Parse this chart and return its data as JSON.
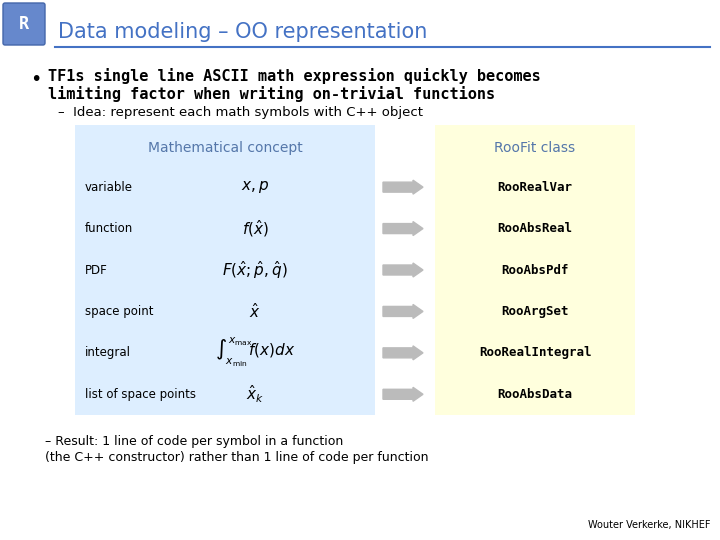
{
  "title": "Data modeling – OO representation",
  "title_color": "#4472C4",
  "bg_color": "#FFFFFF",
  "bullet1": "TF1s single line ASCII math expression quickly becomes\nlimiting factor when writing on-trivial functions",
  "sub_bullet1": "Idea: represent each math symbols with C++ object",
  "left_header": "Mathematical concept",
  "right_header": "RooFit class",
  "left_bg": "#DDEEFF",
  "right_bg": "#FFFFDD",
  "rows": [
    {
      "label": "variable",
      "math": "$x, p$",
      "roofit": "RooRealVar"
    },
    {
      "label": "function",
      "math": "$f(\\hat{x})$",
      "roofit": "RooAbsReal"
    },
    {
      "label": "PDF",
      "math": "$F(\\hat{x};\\hat{p},\\hat{q})$",
      "roofit": "RooAbsPdf"
    },
    {
      "label": "space point",
      "math": "$\\hat{x}$",
      "roofit": "RooArgSet"
    },
    {
      "label": "integral",
      "math": "$\\int_{x_{\\min}}^{x_{\\max}}\\!f(x)dx$",
      "roofit": "RooRealIntegral"
    },
    {
      "label": "list of space points",
      "math": "$\\hat{x}_k$",
      "roofit": "RooAbsData"
    }
  ],
  "footer1": "– Result: 1 line of code per symbol in a function",
  "footer2": "(the C++ constructor) rather than 1 line of code per function",
  "credit": "Wouter Verkerke, NIKHEF",
  "arrow_color": "#BBBBBB"
}
